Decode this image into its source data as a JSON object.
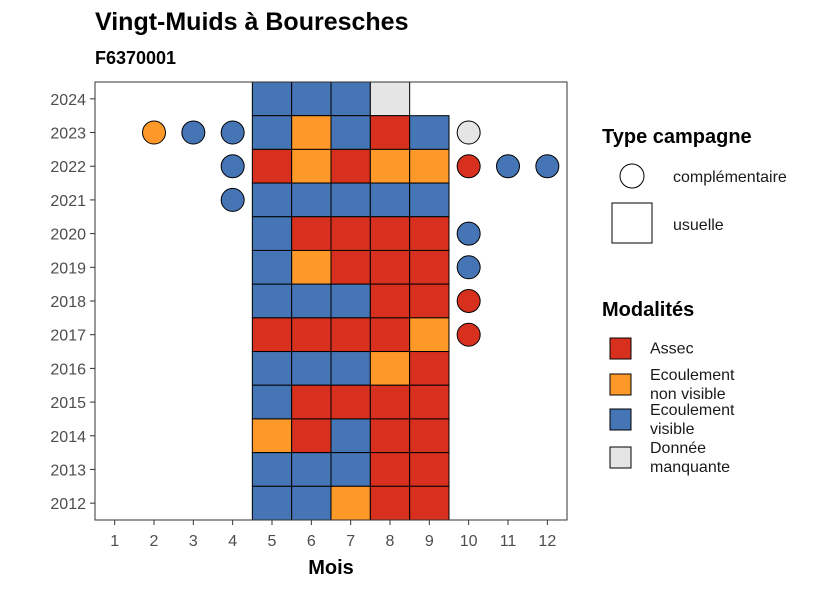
{
  "chart_data": {
    "type": "heatmap",
    "title": "Vingt-Muids à Bouresches",
    "subtitle": "F6370001",
    "xlabel": "Mois",
    "ylabel": "",
    "x_ticks": [
      "1",
      "2",
      "3",
      "4",
      "5",
      "6",
      "7",
      "8",
      "9",
      "10",
      "11",
      "12"
    ],
    "y_ticks": [
      "2012",
      "2013",
      "2014",
      "2015",
      "2016",
      "2017",
      "2018",
      "2019",
      "2020",
      "2021",
      "2022",
      "2023",
      "2024"
    ],
    "xlim": [
      0.5,
      12.5
    ],
    "ylim": [
      2011.5,
      2024.5
    ],
    "grid": false,
    "modalities": {
      "A": {
        "label": "Assec",
        "color": "#d7301f"
      },
      "N": {
        "label": "Ecoulement non visible",
        "color": "#fe9929"
      },
      "V": {
        "label": "Ecoulement visible",
        "color": "#4575b4"
      },
      "M": {
        "label": "Donnée manquante",
        "color": "#e5e5e5"
      }
    },
    "usuelle": [
      {
        "year": 2024,
        "months": [
          "V",
          "V",
          "V",
          "M",
          ""
        ]
      },
      {
        "year": 2023,
        "months": [
          "V",
          "N",
          "V",
          "A",
          "V"
        ]
      },
      {
        "year": 2022,
        "months": [
          "A",
          "N",
          "A",
          "N",
          "N"
        ]
      },
      {
        "year": 2021,
        "months": [
          "V",
          "V",
          "V",
          "V",
          "V"
        ]
      },
      {
        "year": 2020,
        "months": [
          "V",
          "A",
          "A",
          "A",
          "A"
        ]
      },
      {
        "year": 2019,
        "months": [
          "V",
          "N",
          "A",
          "A",
          "A"
        ]
      },
      {
        "year": 2018,
        "months": [
          "V",
          "V",
          "V",
          "A",
          "A"
        ]
      },
      {
        "year": 2017,
        "months": [
          "A",
          "A",
          "A",
          "A",
          "N"
        ]
      },
      {
        "year": 2016,
        "months": [
          "V",
          "V",
          "V",
          "N",
          "A"
        ]
      },
      {
        "year": 2015,
        "months": [
          "V",
          "A",
          "A",
          "A",
          "A"
        ]
      },
      {
        "year": 2014,
        "months": [
          "N",
          "A",
          "V",
          "A",
          "A"
        ]
      },
      {
        "year": 2013,
        "months": [
          "V",
          "V",
          "V",
          "A",
          "A"
        ]
      },
      {
        "year": 2012,
        "months": [
          "V",
          "V",
          "N",
          "A",
          "A"
        ]
      }
    ],
    "usuelle_months": [
      5,
      6,
      7,
      8,
      9
    ],
    "complementaire": [
      {
        "year": 2023,
        "month": 2,
        "mod": "N"
      },
      {
        "year": 2023,
        "month": 3,
        "mod": "V"
      },
      {
        "year": 2023,
        "month": 4,
        "mod": "V"
      },
      {
        "year": 2023,
        "month": 10,
        "mod": "M"
      },
      {
        "year": 2022,
        "month": 4,
        "mod": "V"
      },
      {
        "year": 2022,
        "month": 10,
        "mod": "A"
      },
      {
        "year": 2022,
        "month": 11,
        "mod": "V"
      },
      {
        "year": 2022,
        "month": 12,
        "mod": "V"
      },
      {
        "year": 2021,
        "month": 4,
        "mod": "V"
      },
      {
        "year": 2020,
        "month": 10,
        "mod": "V"
      },
      {
        "year": 2019,
        "month": 10,
        "mod": "V"
      },
      {
        "year": 2018,
        "month": 10,
        "mod": "A"
      },
      {
        "year": 2017,
        "month": 10,
        "mod": "A"
      }
    ],
    "legend": {
      "placement": "right",
      "type_title": "Type campagne",
      "type_items": [
        {
          "key": "complementaire",
          "label": "complémentaire"
        },
        {
          "key": "usuelle",
          "label": "usuelle"
        }
      ],
      "modalites_title": "Modalités",
      "modalites_items": [
        {
          "key": "A",
          "lines": [
            "Assec"
          ]
        },
        {
          "key": "N",
          "lines": [
            "Ecoulement",
            "non visible"
          ]
        },
        {
          "key": "V",
          "lines": [
            "Ecoulement",
            "visible"
          ]
        },
        {
          "key": "M",
          "lines": [
            "Donnée",
            "manquante"
          ]
        }
      ]
    }
  }
}
